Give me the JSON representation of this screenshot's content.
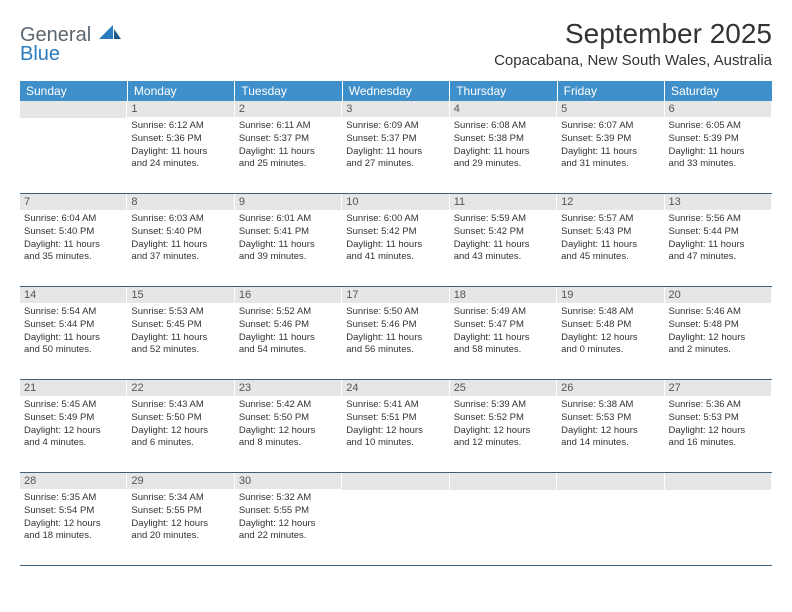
{
  "logo": {
    "general": "General",
    "blue": "Blue"
  },
  "header": {
    "month_title": "September 2025",
    "location": "Copacabana, New South Wales, Australia"
  },
  "colors": {
    "header_bg": "#3f8fca",
    "header_text": "#ffffff",
    "daynum_bg": "#e6e6e6",
    "row_border": "#3f5f7a",
    "logo_gray": "#5c6670",
    "logo_blue": "#2b7bbd"
  },
  "weekdays": [
    "Sunday",
    "Monday",
    "Tuesday",
    "Wednesday",
    "Thursday",
    "Friday",
    "Saturday"
  ],
  "weeks": [
    [
      null,
      {
        "n": "1",
        "sr": "Sunrise: 6:12 AM",
        "ss": "Sunset: 5:36 PM",
        "dl1": "Daylight: 11 hours",
        "dl2": "and 24 minutes."
      },
      {
        "n": "2",
        "sr": "Sunrise: 6:11 AM",
        "ss": "Sunset: 5:37 PM",
        "dl1": "Daylight: 11 hours",
        "dl2": "and 25 minutes."
      },
      {
        "n": "3",
        "sr": "Sunrise: 6:09 AM",
        "ss": "Sunset: 5:37 PM",
        "dl1": "Daylight: 11 hours",
        "dl2": "and 27 minutes."
      },
      {
        "n": "4",
        "sr": "Sunrise: 6:08 AM",
        "ss": "Sunset: 5:38 PM",
        "dl1": "Daylight: 11 hours",
        "dl2": "and 29 minutes."
      },
      {
        "n": "5",
        "sr": "Sunrise: 6:07 AM",
        "ss": "Sunset: 5:39 PM",
        "dl1": "Daylight: 11 hours",
        "dl2": "and 31 minutes."
      },
      {
        "n": "6",
        "sr": "Sunrise: 6:05 AM",
        "ss": "Sunset: 5:39 PM",
        "dl1": "Daylight: 11 hours",
        "dl2": "and 33 minutes."
      }
    ],
    [
      {
        "n": "7",
        "sr": "Sunrise: 6:04 AM",
        "ss": "Sunset: 5:40 PM",
        "dl1": "Daylight: 11 hours",
        "dl2": "and 35 minutes."
      },
      {
        "n": "8",
        "sr": "Sunrise: 6:03 AM",
        "ss": "Sunset: 5:40 PM",
        "dl1": "Daylight: 11 hours",
        "dl2": "and 37 minutes."
      },
      {
        "n": "9",
        "sr": "Sunrise: 6:01 AM",
        "ss": "Sunset: 5:41 PM",
        "dl1": "Daylight: 11 hours",
        "dl2": "and 39 minutes."
      },
      {
        "n": "10",
        "sr": "Sunrise: 6:00 AM",
        "ss": "Sunset: 5:42 PM",
        "dl1": "Daylight: 11 hours",
        "dl2": "and 41 minutes."
      },
      {
        "n": "11",
        "sr": "Sunrise: 5:59 AM",
        "ss": "Sunset: 5:42 PM",
        "dl1": "Daylight: 11 hours",
        "dl2": "and 43 minutes."
      },
      {
        "n": "12",
        "sr": "Sunrise: 5:57 AM",
        "ss": "Sunset: 5:43 PM",
        "dl1": "Daylight: 11 hours",
        "dl2": "and 45 minutes."
      },
      {
        "n": "13",
        "sr": "Sunrise: 5:56 AM",
        "ss": "Sunset: 5:44 PM",
        "dl1": "Daylight: 11 hours",
        "dl2": "and 47 minutes."
      }
    ],
    [
      {
        "n": "14",
        "sr": "Sunrise: 5:54 AM",
        "ss": "Sunset: 5:44 PM",
        "dl1": "Daylight: 11 hours",
        "dl2": "and 50 minutes."
      },
      {
        "n": "15",
        "sr": "Sunrise: 5:53 AM",
        "ss": "Sunset: 5:45 PM",
        "dl1": "Daylight: 11 hours",
        "dl2": "and 52 minutes."
      },
      {
        "n": "16",
        "sr": "Sunrise: 5:52 AM",
        "ss": "Sunset: 5:46 PM",
        "dl1": "Daylight: 11 hours",
        "dl2": "and 54 minutes."
      },
      {
        "n": "17",
        "sr": "Sunrise: 5:50 AM",
        "ss": "Sunset: 5:46 PM",
        "dl1": "Daylight: 11 hours",
        "dl2": "and 56 minutes."
      },
      {
        "n": "18",
        "sr": "Sunrise: 5:49 AM",
        "ss": "Sunset: 5:47 PM",
        "dl1": "Daylight: 11 hours",
        "dl2": "and 58 minutes."
      },
      {
        "n": "19",
        "sr": "Sunrise: 5:48 AM",
        "ss": "Sunset: 5:48 PM",
        "dl1": "Daylight: 12 hours",
        "dl2": "and 0 minutes."
      },
      {
        "n": "20",
        "sr": "Sunrise: 5:46 AM",
        "ss": "Sunset: 5:48 PM",
        "dl1": "Daylight: 12 hours",
        "dl2": "and 2 minutes."
      }
    ],
    [
      {
        "n": "21",
        "sr": "Sunrise: 5:45 AM",
        "ss": "Sunset: 5:49 PM",
        "dl1": "Daylight: 12 hours",
        "dl2": "and 4 minutes."
      },
      {
        "n": "22",
        "sr": "Sunrise: 5:43 AM",
        "ss": "Sunset: 5:50 PM",
        "dl1": "Daylight: 12 hours",
        "dl2": "and 6 minutes."
      },
      {
        "n": "23",
        "sr": "Sunrise: 5:42 AM",
        "ss": "Sunset: 5:50 PM",
        "dl1": "Daylight: 12 hours",
        "dl2": "and 8 minutes."
      },
      {
        "n": "24",
        "sr": "Sunrise: 5:41 AM",
        "ss": "Sunset: 5:51 PM",
        "dl1": "Daylight: 12 hours",
        "dl2": "and 10 minutes."
      },
      {
        "n": "25",
        "sr": "Sunrise: 5:39 AM",
        "ss": "Sunset: 5:52 PM",
        "dl1": "Daylight: 12 hours",
        "dl2": "and 12 minutes."
      },
      {
        "n": "26",
        "sr": "Sunrise: 5:38 AM",
        "ss": "Sunset: 5:53 PM",
        "dl1": "Daylight: 12 hours",
        "dl2": "and 14 minutes."
      },
      {
        "n": "27",
        "sr": "Sunrise: 5:36 AM",
        "ss": "Sunset: 5:53 PM",
        "dl1": "Daylight: 12 hours",
        "dl2": "and 16 minutes."
      }
    ],
    [
      {
        "n": "28",
        "sr": "Sunrise: 5:35 AM",
        "ss": "Sunset: 5:54 PM",
        "dl1": "Daylight: 12 hours",
        "dl2": "and 18 minutes."
      },
      {
        "n": "29",
        "sr": "Sunrise: 5:34 AM",
        "ss": "Sunset: 5:55 PM",
        "dl1": "Daylight: 12 hours",
        "dl2": "and 20 minutes."
      },
      {
        "n": "30",
        "sr": "Sunrise: 5:32 AM",
        "ss": "Sunset: 5:55 PM",
        "dl1": "Daylight: 12 hours",
        "dl2": "and 22 minutes."
      },
      null,
      null,
      null,
      null
    ]
  ]
}
